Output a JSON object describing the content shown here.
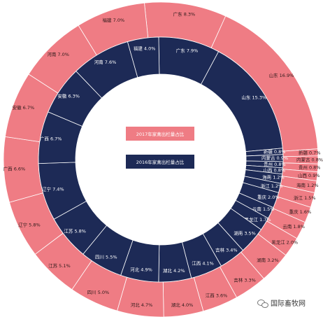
{
  "chart_data": {
    "type": "donut",
    "legend": {
      "outer": "2017年家禽出栏量占比",
      "inner": "2016年家禽出栏量占比"
    },
    "colors": {
      "outer": "#ef7c84",
      "inner": "#1d2a56"
    },
    "series": [
      {
        "ring": "outer",
        "slices": [
          {
            "name": "广东",
            "value": 8.3,
            "label": "广东 8.3%"
          },
          {
            "name": "山东",
            "value": 16.9,
            "label": "山东 16.9%"
          },
          {
            "name": "新疆",
            "value": 0.7,
            "label": "新疆 0.7%"
          },
          {
            "name": "内蒙古",
            "value": 0.8,
            "label": "内蒙古 0.8%"
          },
          {
            "name": "贵州",
            "value": 0.8,
            "label": "贵州 0.8%"
          },
          {
            "name": "山西",
            "value": 0.9,
            "label": "山西 0.9%"
          },
          {
            "name": "海南",
            "value": 1.2,
            "label": "海南 1.2%"
          },
          {
            "name": "浙江",
            "value": 1.5,
            "label": "浙江 1.5%"
          },
          {
            "name": "重庆",
            "value": 1.6,
            "label": "重庆 1.6%"
          },
          {
            "name": "云南",
            "value": 1.8,
            "label": "云南 1.8%"
          },
          {
            "name": "黑龙江",
            "value": 2.0,
            "label": "黑龙江 2.0%"
          },
          {
            "name": "湖南",
            "value": 3.2,
            "label": "湖南 3.2%"
          },
          {
            "name": "吉林",
            "value": 3.3,
            "label": "吉林 3.3%"
          },
          {
            "name": "江西",
            "value": 3.6,
            "label": "江西 3.6%"
          },
          {
            "name": "湖北",
            "value": 4.0,
            "label": "湖北 4.0%"
          },
          {
            "name": "河北",
            "value": 4.7,
            "label": "河北 4.7%"
          },
          {
            "name": "四川",
            "value": 5.0,
            "label": "四川 5.0%"
          },
          {
            "name": "江苏",
            "value": 5.1,
            "label": "江苏 5.1%"
          },
          {
            "name": "辽宁",
            "value": 5.8,
            "label": "辽宁 5.8%"
          },
          {
            "name": "广西",
            "value": 6.6,
            "label": "广西 6.6%"
          },
          {
            "name": "安徽",
            "value": 6.7,
            "label": "安徽 6.7%"
          },
          {
            "name": "河南",
            "value": 7.0,
            "label": "河南 7.0%"
          },
          {
            "name": "福建",
            "value": 7.0,
            "label": "福建 7.0%"
          }
        ]
      },
      {
        "ring": "inner",
        "slices": [
          {
            "name": "广东",
            "value": 7.9,
            "label": "广东 7.9%"
          },
          {
            "name": "山东",
            "value": 15.3,
            "label": "山东 15.3%"
          },
          {
            "name": "新疆",
            "value": 0.8,
            "label": "新疆 0.8%"
          },
          {
            "name": "内蒙古",
            "value": 0.9,
            "label": "内蒙古 0.9%"
          },
          {
            "name": "贵州",
            "value": 0.8,
            "label": "贵州 0.8%"
          },
          {
            "name": "山西",
            "value": 0.8,
            "label": "山西 0.8%"
          },
          {
            "name": "海南",
            "value": 1.2,
            "label": "海南 1.2%"
          },
          {
            "name": "浙江",
            "value": 1.2,
            "label": "浙江 1.2%"
          },
          {
            "name": "重庆",
            "value": 2.0,
            "label": "重庆 2.0%"
          },
          {
            "name": "云南",
            "value": 1.5,
            "label": "云南 1.5%"
          },
          {
            "name": "黑龙江",
            "value": 1.7,
            "label": "黑龙江 1.7%"
          },
          {
            "name": "湖南",
            "value": 3.5,
            "label": "湖南 3.5%"
          },
          {
            "name": "吉林",
            "value": 3.4,
            "label": "吉林 3.4%"
          },
          {
            "name": "江西",
            "value": 4.1,
            "label": "江西 4.1%"
          },
          {
            "name": "湖北",
            "value": 4.2,
            "label": "湖北 4.2%"
          },
          {
            "name": "河北",
            "value": 4.9,
            "label": "河北 4.9%"
          },
          {
            "name": "四川",
            "value": 5.5,
            "label": "四川 5.5%"
          },
          {
            "name": "江苏",
            "value": 5.8,
            "label": "江苏 5.8%"
          },
          {
            "name": "辽宁",
            "value": 7.4,
            "label": "辽宁 7.4%"
          },
          {
            "name": "广西",
            "value": 6.7,
            "label": "广西 6.7%"
          },
          {
            "name": "安徽",
            "value": 6.3,
            "label": "安徽 6.3%"
          },
          {
            "name": "河南",
            "value": 7.6,
            "label": "河南 7.6%"
          },
          {
            "name": "福建",
            "value": 4.0,
            "label": "福建 4.0%"
          }
        ]
      }
    ]
  },
  "watermark": {
    "text": "国际畜牧网"
  }
}
